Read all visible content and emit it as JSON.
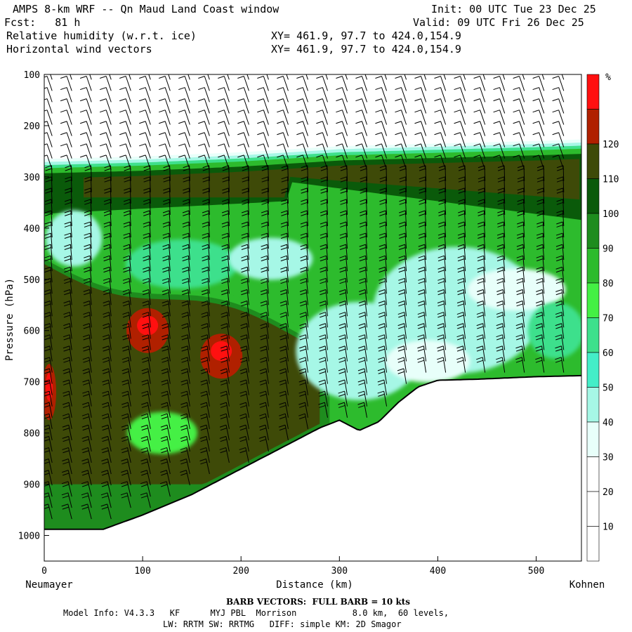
{
  "header": {
    "title": "AMPS 8-km WRF -- Qn Maud Land Coast window",
    "init": "Init: 00 UTC Tue 23 Dec 25",
    "fcst": "Fcst:   81 h",
    "valid": "Valid: 09 UTC Fri 26 Dec 25",
    "field1": "Relative humidity (w.r.t. ice)",
    "field1_xy": "XY= 461.9, 97.7 to 424.0,154.9",
    "field2": "Horizontal wind vectors",
    "field2_xy": "XY= 461.9, 97.7 to 424.0,154.9"
  },
  "footer": {
    "barb": "BARB VECTORS:  FULL BARB = 10 kts",
    "model_line1": "Model Info: V4.3.3   KF      MYJ PBL  Morrison           8.0 km,  60 levels,",
    "model_line2": "LW: RRTM SW: RRTMG   DIFF: simple KM: 2D Smagor"
  },
  "chart_data": {
    "type": "cross-section",
    "ylabel": "Pressure (hPa)",
    "xlabel": "Distance (km)",
    "x_start_label": "Neumayer",
    "x_end_label": "Kohnen",
    "xlim": [
      0,
      546
    ],
    "ylim": [
      1050,
      100
    ],
    "x_ticks": [
      0,
      100,
      200,
      300,
      400,
      500
    ],
    "y_ticks": [
      100,
      200,
      300,
      400,
      500,
      600,
      700,
      800,
      900,
      1000
    ],
    "colorbar_unit": "%",
    "colorbar_levels": [
      10,
      20,
      30,
      40,
      50,
      60,
      70,
      80,
      90,
      100,
      110,
      120
    ],
    "colorbar_colors": [
      "#ffffff",
      "#ffffff",
      "#ffffff",
      "#e8fffa",
      "#a6f7e6",
      "#44eec8",
      "#3ee08c",
      "#44f044",
      "#2dbb2d",
      "#1e8c1e",
      "#0a5a0a",
      "#3e4a08",
      "#b02000",
      "#ff1010"
    ],
    "terrain": {
      "x": [
        0,
        60,
        100,
        150,
        200,
        230,
        260,
        280,
        300,
        320,
        340,
        360,
        380,
        400,
        440,
        500,
        546
      ],
      "p": [
        988,
        988,
        960,
        920,
        870,
        840,
        810,
        790,
        775,
        795,
        778,
        740,
        710,
        697,
        695,
        690,
        688
      ]
    },
    "moist_top": {
      "x": [
        0,
        100,
        200,
        300,
        400,
        500,
        546
      ],
      "p": [
        275,
        270,
        262,
        250,
        245,
        240,
        237
      ]
    },
    "rh_regions": [
      {
        "level": 110,
        "description": "saturated layer below moist top",
        "x": [
          0,
          546
        ],
        "p_range": [
          285,
          700
        ]
      },
      {
        "level": 120,
        "centers": [
          [
            105,
            600
          ],
          [
            180,
            650
          ],
          [
            5,
            720
          ]
        ]
      }
    ],
    "wind": {
      "full_barb_kts": 10
    }
  }
}
